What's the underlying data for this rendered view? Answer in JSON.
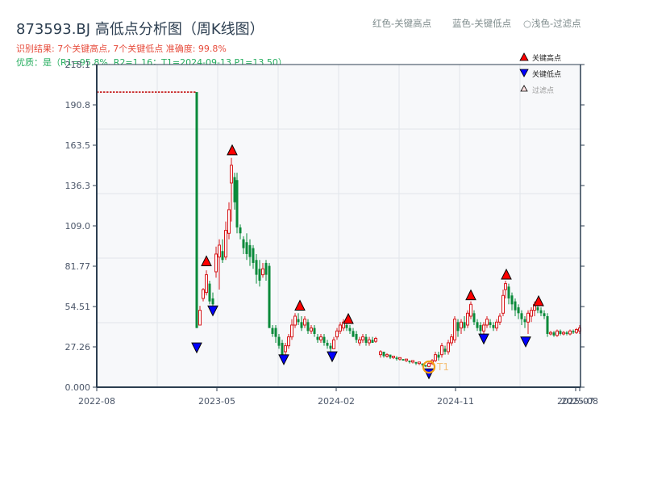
{
  "header": {
    "title": "873593.BJ 高低点分析图（周K线图）",
    "result_line": "识别结果: 7个关键高点, 7个关键低点   准确度: 99.8%",
    "quality_line": "优质：是（R1=95.8%, R2=1.16；T1=2024-09-13 P1=13.50）"
  },
  "top_legend": {
    "red_label": "红色-关键高点",
    "blue_label": "蓝色-关键低点",
    "light_label": "○浅色-过滤点"
  },
  "colors": {
    "up": "#d7191c",
    "down": "#0a8a3a",
    "high_marker": "#ff0000",
    "low_marker": "#0000ff",
    "t1_ring": "#f39c12",
    "plot_bg": "#f7f8fa",
    "axis": "#2c3e50",
    "grid": "#e2e5ea",
    "ref_line": "#c00000"
  },
  "chart_data": {
    "type": "candlestick",
    "title": "873593.BJ 高低点分析图（周K线图）",
    "xlabel": "",
    "ylabel": "",
    "ylim": [
      0,
      218.1
    ],
    "y_ticks": [
      "0.000",
      "27.26",
      "54.51",
      "81.77",
      "109.0",
      "136.3",
      "163.5",
      "190.8",
      "218.1"
    ],
    "x_ticks": [
      "2022-08",
      "2023-05",
      "2024-02",
      "2024-11",
      "2025-07",
      "2025-08"
    ],
    "grid": true,
    "legend": {
      "position": "upper right",
      "entries": [
        "关键高点",
        "关键低点",
        "过滤点"
      ]
    },
    "reference_line": {
      "value": 199.5,
      "style": "dashed",
      "color": "#c00000",
      "from": "2022-08",
      "to": "2023-04"
    },
    "annotation": {
      "label": "T1",
      "date": "2024-09-13",
      "price": 13.5
    },
    "key_highs": [
      {
        "date": "2023-04",
        "price": 81.0
      },
      {
        "date": "2023-06",
        "price": 156.0
      },
      {
        "date": "2023-11",
        "price": 51.0
      },
      {
        "date": "2024-03",
        "price": 42.0
      },
      {
        "date": "2024-12",
        "price": 58.0
      },
      {
        "date": "2025-03",
        "price": 72.0
      },
      {
        "date": "2025-05",
        "price": 54.0
      }
    ],
    "key_lows": [
      {
        "date": "2023-03",
        "price": 31.0
      },
      {
        "date": "2023-04",
        "price": 56.0
      },
      {
        "date": "2023-10",
        "price": 23.0
      },
      {
        "date": "2024-01",
        "price": 25.0
      },
      {
        "date": "2024-09",
        "price": 13.5
      },
      {
        "date": "2025-01",
        "price": 37.0
      },
      {
        "date": "2025-04",
        "price": 35.0
      }
    ],
    "candles": [
      [
        244,
        199.5,
        40,
        199.5,
        40
      ],
      [
        248,
        42,
        52,
        42,
        55
      ],
      [
        252,
        60,
        66,
        58,
        67
      ],
      [
        256,
        64,
        76,
        62,
        79
      ],
      [
        260,
        70,
        58,
        56,
        72
      ],
      [
        264,
        60,
        56,
        54,
        64
      ],
      [
        268,
        78,
        90,
        74,
        95
      ],
      [
        272,
        88,
        96,
        66,
        100
      ],
      [
        276,
        92,
        86,
        84,
        100
      ],
      [
        280,
        88,
        106,
        86,
        112
      ],
      [
        284,
        104,
        120,
        100,
        125
      ],
      [
        287,
        138,
        150,
        112,
        155
      ],
      [
        291,
        142,
        125,
        120,
        145
      ],
      [
        294,
        140,
        108,
        104,
        145
      ],
      [
        298,
        108,
        104,
        100,
        110
      ],
      [
        302,
        100,
        94,
        90,
        102
      ],
      [
        306,
        98,
        90,
        86,
        104
      ],
      [
        310,
        96,
        88,
        82,
        100
      ],
      [
        314,
        94,
        84,
        80,
        96
      ],
      [
        318,
        86,
        76,
        70,
        90
      ],
      [
        322,
        80,
        72,
        68,
        86
      ],
      [
        326,
        76,
        80,
        74,
        84
      ],
      [
        330,
        84,
        76,
        72,
        86
      ],
      [
        334,
        82,
        40,
        40,
        84
      ],
      [
        338,
        40,
        36,
        34,
        42
      ],
      [
        342,
        40,
        34,
        30,
        42
      ],
      [
        346,
        34,
        28,
        26,
        36
      ],
      [
        350,
        30,
        22,
        22,
        32
      ],
      [
        354,
        24,
        28,
        22,
        30
      ],
      [
        358,
        28,
        34,
        26,
        36
      ],
      [
        362,
        34,
        42,
        32,
        46
      ],
      [
        366,
        42,
        48,
        40,
        50
      ],
      [
        370,
        46,
        44,
        42,
        50
      ],
      [
        374,
        44,
        40,
        38,
        48
      ],
      [
        378,
        42,
        46,
        40,
        48
      ],
      [
        382,
        44,
        38,
        36,
        46
      ],
      [
        386,
        38,
        40,
        36,
        42
      ],
      [
        390,
        40,
        36,
        34,
        42
      ],
      [
        394,
        34,
        32,
        30,
        36
      ],
      [
        398,
        32,
        34,
        30,
        36
      ],
      [
        402,
        34,
        30,
        28,
        36
      ],
      [
        406,
        30,
        28,
        26,
        32
      ],
      [
        410,
        28,
        26,
        24,
        30
      ],
      [
        414,
        26,
        32,
        26,
        34
      ],
      [
        418,
        34,
        38,
        32,
        40
      ],
      [
        422,
        38,
        42,
        36,
        44
      ],
      [
        426,
        40,
        44,
        38,
        46
      ],
      [
        430,
        42,
        40,
        38,
        44
      ],
      [
        434,
        40,
        38,
        36,
        42
      ],
      [
        438,
        38,
        34,
        34,
        40
      ],
      [
        442,
        36,
        32,
        30,
        38
      ],
      [
        446,
        30,
        32,
        28,
        34
      ],
      [
        450,
        32,
        34,
        30,
        36
      ],
      [
        454,
        34,
        30,
        28,
        36
      ],
      [
        458,
        30,
        32,
        28,
        34
      ],
      [
        462,
        32,
        30,
        30,
        34
      ],
      [
        466,
        31,
        33,
        30,
        34
      ],
      [
        472,
        22,
        24,
        20,
        25
      ],
      [
        476,
        24,
        21,
        20,
        24
      ],
      [
        480,
        21,
        22,
        20,
        23
      ],
      [
        484,
        22,
        20,
        19,
        22
      ],
      [
        488,
        20,
        21,
        19,
        21
      ],
      [
        492,
        20,
        19,
        18,
        21
      ],
      [
        496,
        19,
        20,
        18,
        20
      ],
      [
        500,
        19,
        18,
        18,
        19
      ],
      [
        504,
        18,
        19,
        17,
        19
      ],
      [
        508,
        18,
        17,
        16,
        18
      ],
      [
        512,
        17,
        18,
        16,
        18
      ],
      [
        516,
        17,
        16,
        15,
        17
      ],
      [
        520,
        16,
        17,
        15,
        17
      ],
      [
        524,
        16,
        15,
        14,
        16
      ],
      [
        528,
        15,
        14,
        13.5,
        15
      ],
      [
        532,
        14,
        16,
        13.5,
        17
      ],
      [
        536,
        16,
        18,
        15,
        19
      ],
      [
        540,
        18,
        22,
        17,
        24
      ],
      [
        544,
        22,
        20,
        18,
        24
      ],
      [
        548,
        22,
        28,
        20,
        30
      ],
      [
        552,
        26,
        24,
        22,
        28
      ],
      [
        556,
        24,
        30,
        22,
        32
      ],
      [
        560,
        30,
        34,
        28,
        36
      ],
      [
        564,
        32,
        46,
        30,
        48
      ],
      [
        568,
        44,
        38,
        34,
        46
      ],
      [
        572,
        40,
        44,
        36,
        46
      ],
      [
        576,
        44,
        40,
        38,
        48
      ],
      [
        580,
        42,
        50,
        40,
        52
      ],
      [
        584,
        48,
        56,
        46,
        58
      ],
      [
        588,
        50,
        44,
        42,
        52
      ],
      [
        592,
        44,
        40,
        38,
        46
      ],
      [
        596,
        42,
        38,
        36,
        44
      ],
      [
        600,
        38,
        42,
        36,
        44
      ],
      [
        604,
        42,
        46,
        40,
        48
      ],
      [
        608,
        44,
        42,
        40,
        46
      ],
      [
        612,
        42,
        40,
        38,
        44
      ],
      [
        616,
        40,
        44,
        38,
        46
      ],
      [
        620,
        44,
        48,
        42,
        50
      ],
      [
        624,
        50,
        62,
        48,
        66
      ],
      [
        627,
        66,
        70,
        60,
        72
      ],
      [
        631,
        68,
        60,
        56,
        70
      ],
      [
        635,
        62,
        56,
        52,
        64
      ],
      [
        639,
        58,
        52,
        48,
        60
      ],
      [
        643,
        54,
        50,
        46,
        56
      ],
      [
        647,
        50,
        46,
        42,
        52
      ],
      [
        651,
        46,
        44,
        40,
        48
      ],
      [
        655,
        44,
        50,
        36,
        52
      ],
      [
        659,
        48,
        52,
        44,
        54
      ],
      [
        663,
        52,
        56,
        48,
        58
      ],
      [
        667,
        54,
        52,
        50,
        56
      ],
      [
        671,
        52,
        50,
        48,
        54
      ],
      [
        675,
        50,
        48,
        46,
        52
      ],
      [
        679,
        48,
        36,
        34,
        50
      ],
      [
        683,
        36,
        37,
        35,
        38
      ],
      [
        687,
        37,
        35,
        34,
        38
      ],
      [
        691,
        35,
        38,
        34,
        39
      ],
      [
        695,
        38,
        36,
        35,
        39
      ],
      [
        699,
        36,
        37,
        35,
        38
      ],
      [
        703,
        37,
        36,
        35,
        38
      ],
      [
        707,
        36,
        38,
        35,
        39
      ],
      [
        711,
        38,
        37,
        36,
        39
      ],
      [
        715,
        37,
        39,
        36,
        40
      ],
      [
        719,
        38,
        40,
        36,
        42
      ]
    ]
  },
  "markers": {
    "legend_high": "关键高点",
    "legend_low": "关键低点",
    "legend_filtered": "过滤点",
    "t1_label": "T1"
  }
}
